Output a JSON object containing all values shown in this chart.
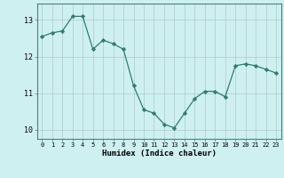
{
  "x": [
    0,
    1,
    2,
    3,
    4,
    5,
    6,
    7,
    8,
    9,
    10,
    11,
    12,
    13,
    14,
    15,
    16,
    17,
    18,
    19,
    20,
    21,
    22,
    23
  ],
  "y": [
    12.55,
    12.65,
    12.7,
    13.1,
    13.1,
    12.2,
    12.45,
    12.35,
    12.2,
    11.2,
    10.55,
    10.45,
    10.15,
    10.05,
    10.45,
    10.85,
    11.05,
    11.05,
    10.9,
    11.75,
    11.8,
    11.75,
    11.65,
    11.55
  ],
  "xlabel": "Humidex (Indice chaleur)",
  "line_color": "#2e7d6e",
  "marker": "D",
  "marker_size": 2.2,
  "bg_color": "#cff0f0",
  "grid_color": "#b0c8c8",
  "axis_color": "#4a8080",
  "ylim": [
    9.75,
    13.45
  ],
  "xlim": [
    -0.5,
    23.5
  ],
  "yticks": [
    10,
    11,
    12,
    13
  ],
  "xticks": [
    0,
    1,
    2,
    3,
    4,
    5,
    6,
    7,
    8,
    9,
    10,
    11,
    12,
    13,
    14,
    15,
    16,
    17,
    18,
    19,
    20,
    21,
    22,
    23
  ]
}
